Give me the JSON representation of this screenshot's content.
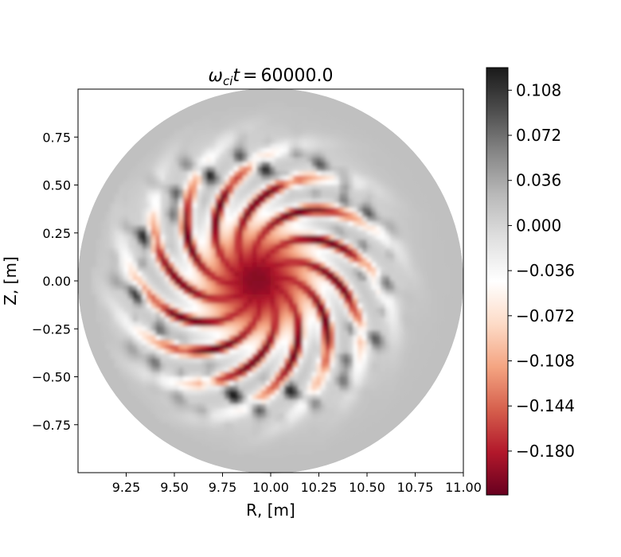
{
  "chart_data": {
    "type": "heatmap",
    "title": {
      "symbol": "ω",
      "subscript": "ci",
      "variable": "t",
      "value": "60000.0"
    },
    "xlabel": "R, [m]",
    "ylabel": "Z, [m]",
    "xlim": [
      9.0,
      11.0
    ],
    "ylim": [
      -1.0,
      1.0
    ],
    "xticks": [
      9.25,
      9.5,
      9.75,
      10.0,
      10.25,
      10.5,
      10.75,
      11.0
    ],
    "xtick_labels": [
      "9.25",
      "9.50",
      "9.75",
      "10.00",
      "10.25",
      "10.50",
      "10.75",
      "11.00"
    ],
    "yticks": [
      0.75,
      0.5,
      0.25,
      0.0,
      -0.25,
      -0.5,
      -0.75
    ],
    "ytick_labels": [
      "0.75",
      "0.50",
      "0.25",
      "0.00",
      "−0.25",
      "−0.50",
      "−0.75"
    ],
    "domain": {
      "shape": "circle",
      "center": [
        10.0,
        0.0
      ],
      "radius": 1.0
    },
    "colormap": "RdGy",
    "colorbar": {
      "vmin": -0.215,
      "vmax": 0.126,
      "ticks": [
        0.108,
        0.072,
        0.036,
        0.0,
        -0.036,
        -0.072,
        -0.108,
        -0.144,
        -0.18
      ],
      "tick_labels": [
        "0.108",
        "0.072",
        "0.036",
        "0.000",
        "−0.036",
        "−0.072",
        "−0.108",
        "−0.144",
        "−0.180"
      ]
    },
    "field_features": {
      "edge_value": 0.018,
      "core_center": [
        9.93,
        0.0
      ],
      "core_value": -0.2,
      "num_arms": 12
    },
    "colors": {
      "stops": [
        "#67001f",
        "#b2182b",
        "#d6604d",
        "#f4a582",
        "#fddbc7",
        "#ffffff",
        "#e0e0e0",
        "#bababa",
        "#878787",
        "#4d4d4d",
        "#1a1a1a"
      ]
    }
  }
}
